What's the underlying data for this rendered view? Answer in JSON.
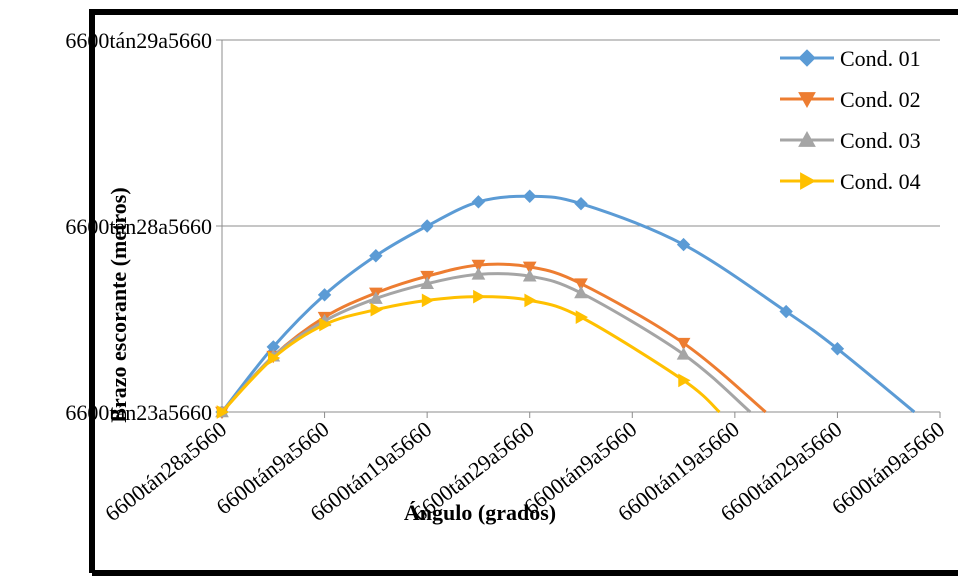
{
  "chart_data": {
    "type": "line",
    "title": "",
    "xlabel": "Ángulo (grados)",
    "ylabel": "Brazo escorante (metros)",
    "x_ticks": [
      "6600tán28a5660",
      "6600tán9a5660",
      "6600tán19a5660",
      "6600tán29a5660",
      "6600tán9a5660",
      "6600tán19a5660",
      "6600tán29a5660",
      "6600tán9a5660"
    ],
    "y_ticks": [
      "6600tán23a5660",
      "6600tán28a5660",
      "6600tán29a5660"
    ],
    "xlim": [
      0,
      70
    ],
    "ylim": [
      0,
      2
    ],
    "grid": "horizontal",
    "legend": "top-right",
    "series": [
      {
        "name": "Cond. 01",
        "color": "#5b9bd5",
        "marker": "diamond",
        "x": [
          0,
          5,
          10,
          15,
          20,
          25,
          30,
          35,
          45,
          55,
          60,
          67.5
        ],
        "y": [
          0,
          0.35,
          0.63,
          0.84,
          1.0,
          1.13,
          1.16,
          1.12,
          0.9,
          0.54,
          0.34,
          0
        ]
      },
      {
        "name": "Cond. 02",
        "color": "#ed7d31",
        "marker": "triangle-down",
        "x": [
          0,
          5,
          10,
          15,
          20,
          25,
          30,
          35,
          45,
          53
        ],
        "y": [
          0,
          0.3,
          0.51,
          0.64,
          0.73,
          0.79,
          0.78,
          0.69,
          0.37,
          0
        ]
      },
      {
        "name": "Cond. 03",
        "color": "#a5a5a5",
        "marker": "triangle-up",
        "x": [
          0,
          5,
          10,
          15,
          20,
          25,
          30,
          35,
          45,
          51.5
        ],
        "y": [
          0,
          0.3,
          0.49,
          0.61,
          0.69,
          0.74,
          0.73,
          0.64,
          0.31,
          0
        ]
      },
      {
        "name": "Cond. 04",
        "color": "#ffc000",
        "marker": "triangle-right",
        "x": [
          0,
          5,
          10,
          15,
          20,
          25,
          30,
          35,
          45,
          48.5
        ],
        "y": [
          0,
          0.29,
          0.47,
          0.55,
          0.6,
          0.62,
          0.6,
          0.51,
          0.17,
          0
        ]
      }
    ]
  }
}
